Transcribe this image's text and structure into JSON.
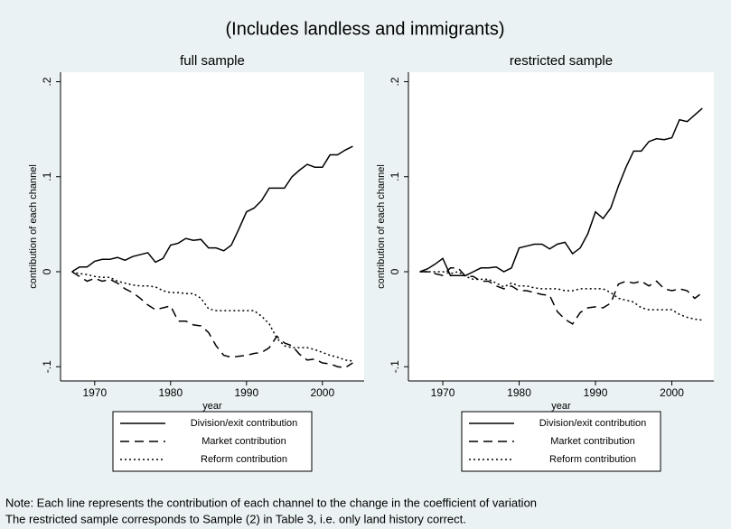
{
  "title": "(Includes landless and immigrants)",
  "note": [
    "Note: Each line represents the contribution of each channel to the change in the coefficient of variation",
    "The restricted sample corresponds to Sample (2) in Table 3, i.e. only land history correct."
  ],
  "chart_data": [
    {
      "type": "line",
      "title": "full sample",
      "x_label": "year",
      "y_label": "contribution of each channel",
      "x": [
        1967,
        1968,
        1969,
        1970,
        1971,
        1972,
        1973,
        1974,
        1975,
        1976,
        1977,
        1978,
        1979,
        1980,
        1981,
        1982,
        1983,
        1984,
        1985,
        1986,
        1987,
        1988,
        1989,
        1990,
        1991,
        1992,
        1993,
        1994,
        1995,
        1996,
        1997,
        1998,
        1999,
        2000,
        2001,
        2002,
        2003,
        2004
      ],
      "series": [
        {
          "name": "Division/exit contribution",
          "color": "#000000",
          "dash": "solid",
          "values": [
            0,
            0.005,
            0.005,
            0.011,
            0.013,
            0.013,
            0.015,
            0.012,
            0.016,
            0.018,
            0.02,
            0.01,
            0.014,
            0.028,
            0.03,
            0.035,
            0.033,
            0.034,
            0.025,
            0.025,
            0.022,
            0.028,
            0.045,
            0.063,
            0.067,
            0.075,
            0.088,
            0.088,
            0.088,
            0.1,
            0.107,
            0.113,
            0.11,
            0.11,
            0.123,
            0.123,
            0.128,
            0.132
          ]
        },
        {
          "name": "Market contribution",
          "color": "#000000",
          "dash": "dashed",
          "values": [
            0,
            -0.005,
            -0.01,
            -0.007,
            -0.01,
            -0.008,
            -0.012,
            -0.018,
            -0.022,
            -0.028,
            -0.035,
            -0.04,
            -0.038,
            -0.036,
            -0.052,
            -0.052,
            -0.056,
            -0.057,
            -0.064,
            -0.078,
            -0.088,
            -0.09,
            -0.089,
            -0.088,
            -0.086,
            -0.085,
            -0.08,
            -0.068,
            -0.075,
            -0.078,
            -0.087,
            -0.093,
            -0.092,
            -0.096,
            -0.097,
            -0.1,
            -0.101,
            -0.096
          ]
        },
        {
          "name": "Reform contribution",
          "color": "#000000",
          "dash": "dotted",
          "values": [
            0,
            -0.002,
            -0.003,
            -0.005,
            -0.006,
            -0.006,
            -0.01,
            -0.012,
            -0.014,
            -0.015,
            -0.015,
            -0.016,
            -0.02,
            -0.022,
            -0.022,
            -0.023,
            -0.023,
            -0.028,
            -0.039,
            -0.041,
            -0.041,
            -0.041,
            -0.041,
            -0.041,
            -0.041,
            -0.047,
            -0.055,
            -0.07,
            -0.078,
            -0.08,
            -0.08,
            -0.08,
            -0.082,
            -0.085,
            -0.088,
            -0.09,
            -0.093,
            -0.094
          ]
        }
      ],
      "xlim": [
        1965.5,
        2005.5
      ],
      "xticks": [
        1970,
        1980,
        1990,
        2000
      ],
      "ylim": [
        -0.115,
        0.21
      ],
      "yticks": [
        {
          "value": -0.1,
          "label": "-.1"
        },
        0,
        {
          "value": 0.1,
          "label": ".1"
        },
        {
          "value": 0.2,
          "label": ".2"
        }
      ],
      "grid": false,
      "legend": "bottom"
    },
    {
      "type": "line",
      "title": "restricted sample",
      "x_label": "year",
      "y_label": "contribution of each channel",
      "x": [
        1967,
        1968,
        1969,
        1970,
        1971,
        1972,
        1973,
        1974,
        1975,
        1976,
        1977,
        1978,
        1979,
        1980,
        1981,
        1982,
        1983,
        1984,
        1985,
        1986,
        1987,
        1988,
        1989,
        1990,
        1991,
        1992,
        1993,
        1994,
        1995,
        1996,
        1997,
        1998,
        1999,
        2000,
        2001,
        2002,
        2003,
        2004
      ],
      "series": [
        {
          "name": "Division/exit contribution",
          "color": "#000000",
          "dash": "solid",
          "values": [
            0,
            0.003,
            0.008,
            0.014,
            -0.004,
            -0.004,
            -0.004,
            0,
            0.004,
            0.004,
            0.005,
            0,
            0.004,
            0.025,
            0.027,
            0.029,
            0.029,
            0.024,
            0.029,
            0.031,
            0.019,
            0.025,
            0.04,
            0.063,
            0.056,
            0.067,
            0.09,
            0.11,
            0.127,
            0.127,
            0.137,
            0.14,
            0.139,
            0.141,
            0.16,
            0.158,
            0.165,
            0.172
          ]
        },
        {
          "name": "Market contribution",
          "color": "#000000",
          "dash": "dashed",
          "values": [
            0,
            0,
            -0.002,
            -0.004,
            0.004,
            0.004,
            -0.005,
            -0.005,
            -0.01,
            -0.01,
            -0.015,
            -0.018,
            -0.015,
            -0.02,
            -0.02,
            -0.022,
            -0.024,
            -0.025,
            -0.042,
            -0.05,
            -0.055,
            -0.043,
            -0.038,
            -0.037,
            -0.038,
            -0.033,
            -0.013,
            -0.01,
            -0.012,
            -0.01,
            -0.015,
            -0.01,
            -0.018,
            -0.02,
            -0.018,
            -0.02,
            -0.028,
            -0.022
          ]
        },
        {
          "name": "Reform contribution",
          "color": "#000000",
          "dash": "dotted",
          "values": [
            0,
            0,
            0,
            0,
            -0.002,
            0,
            -0.005,
            -0.008,
            -0.008,
            -0.008,
            -0.012,
            -0.016,
            -0.012,
            -0.015,
            -0.015,
            -0.017,
            -0.018,
            -0.018,
            -0.018,
            -0.02,
            -0.02,
            -0.018,
            -0.018,
            -0.018,
            -0.018,
            -0.022,
            -0.028,
            -0.03,
            -0.032,
            -0.038,
            -0.04,
            -0.04,
            -0.04,
            -0.04,
            -0.045,
            -0.048,
            -0.05,
            -0.051
          ]
        }
      ],
      "xlim": [
        1965.5,
        2005.5
      ],
      "xticks": [
        1970,
        1980,
        1990,
        2000
      ],
      "ylim": [
        -0.115,
        0.21
      ],
      "yticks": [
        {
          "value": -0.1,
          "label": "-.1"
        },
        0,
        {
          "value": 0.1,
          "label": ".1"
        },
        {
          "value": 0.2,
          "label": ".2"
        }
      ],
      "grid": false,
      "legend": "bottom"
    }
  ]
}
